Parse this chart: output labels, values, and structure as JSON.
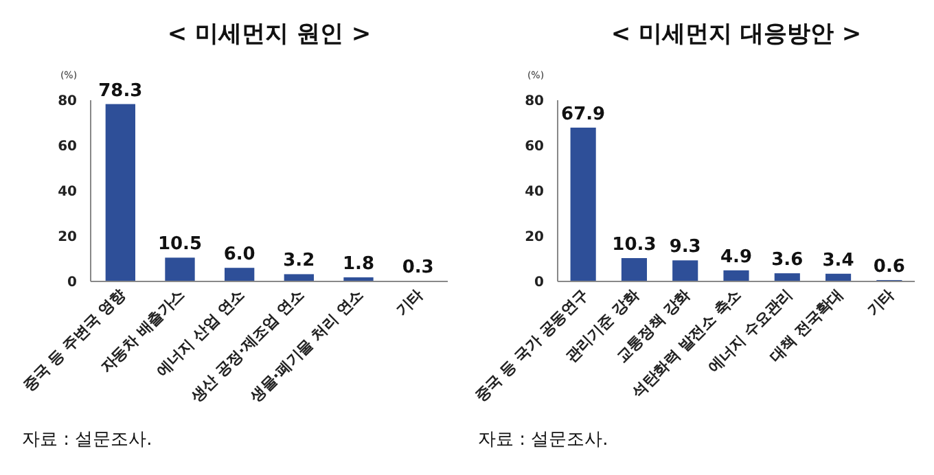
{
  "chart_data": [
    {
      "type": "bar",
      "title": "< 미세먼지 원인 >",
      "ylabel": "(%)",
      "categories": [
        "중국 등 주변국 영향",
        "자동차 배출가스",
        "에너지 산업 연소",
        "생산 공정·제조업 연소",
        "생물·폐기물 처리 연소",
        "기타"
      ],
      "values": [
        78.3,
        10.5,
        6.0,
        3.2,
        1.8,
        0.3
      ],
      "value_labels": [
        "78.3",
        "10.5",
        "6.0",
        "3.2",
        "1.8",
        "0.3"
      ],
      "color": "#2e4f98",
      "ylim": [
        0,
        80
      ],
      "yticks": [
        0,
        20,
        40,
        60,
        80
      ],
      "grid": false,
      "annotations": [
        "자료 : 설문조사."
      ]
    },
    {
      "type": "bar",
      "title": "< 미세먼지 대응방안 >",
      "ylabel": "(%)",
      "categories": [
        "중국 등 국가 공동연구",
        "관리기준 강화",
        "교통정책 강화",
        "석탄화력 발전소 축소",
        "에너지 수요관리",
        "대책 전국확대",
        "기타"
      ],
      "values": [
        67.9,
        10.3,
        9.3,
        4.9,
        3.6,
        3.4,
        0.6
      ],
      "value_labels": [
        "67.9",
        "10.3",
        "9.3",
        "4.9",
        "3.6",
        "3.4",
        "0.6"
      ],
      "color": "#2e4f98",
      "ylim": [
        0,
        80
      ],
      "yticks": [
        0,
        20,
        40,
        60,
        80
      ],
      "grid": false,
      "annotations": [
        "자료 : 설문조사."
      ]
    }
  ]
}
